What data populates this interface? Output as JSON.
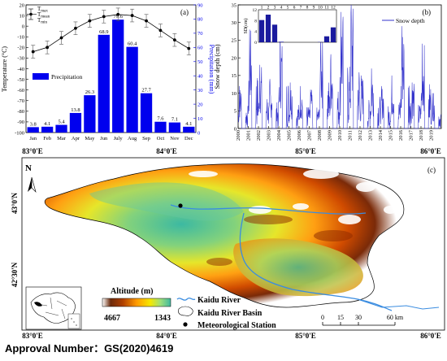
{
  "chart_data": [
    {
      "type": "bar",
      "panel_label": "(a)",
      "categories": [
        "Jan",
        "Feb",
        "Mar",
        "Apr",
        "May",
        "Jun",
        "July",
        "Aug",
        "Sep",
        "Oct",
        "Nov",
        "Dec"
      ],
      "precipitation": {
        "name": "Precipitation",
        "values": [
          3.8,
          4.1,
          5.4,
          13.8,
          26.3,
          68.9,
          79.6,
          60.4,
          27.7,
          7.6,
          7.1,
          4.1
        ],
        "color": "#0000ee"
      },
      "temperature": {
        "mean": [
          -24,
          -20,
          -11,
          -2,
          5,
          9,
          11,
          10,
          5,
          -4,
          -13,
          -21
        ],
        "max": [
          -18,
          -14,
          -5,
          4,
          11,
          15,
          17,
          16,
          11,
          2,
          -7,
          -15
        ],
        "min": [
          -30,
          -26,
          -17,
          -8,
          -1,
          3,
          5,
          4,
          -1,
          -10,
          -19,
          -27
        ]
      },
      "legend": {
        "tmax": "T",
        "tmax_sub": "max",
        "tmean": "T",
        "tmean_sub": "mean",
        "tmin": "T",
        "tmin_sub": "min"
      },
      "ylabel": "Temperature (°C)",
      "y2label": "Precipitation (mm)",
      "ylim": [
        -100,
        20
      ],
      "y2lim": [
        0,
        90
      ],
      "yticks": [
        20,
        10,
        0,
        -10,
        -20,
        -30,
        -40,
        -50,
        -60,
        -70,
        -80,
        -90,
        -100
      ],
      "y2ticks": [
        0,
        10,
        20,
        30,
        40,
        50,
        60,
        70,
        80,
        90
      ]
    },
    {
      "type": "line",
      "panel_label": "(b)",
      "series_name": "Snow depth",
      "ylabel": "Snow depth (cm)",
      "ylim": [
        0,
        35
      ],
      "yticks": [
        0,
        5,
        10,
        15,
        20,
        25,
        30,
        35
      ],
      "xticks": [
        "2000",
        "2001",
        "2002",
        "2003",
        "2004",
        "2005",
        "2006",
        "2007",
        "2008",
        "2009",
        "2010",
        "2011",
        "2012",
        "2013",
        "2014",
        "2015",
        "2016",
        "2017",
        "2018",
        "2019"
      ],
      "yearly_peaks": [
        12,
        28,
        18,
        14,
        26,
        13,
        12,
        11,
        26,
        21,
        33,
        35,
        15,
        17,
        12,
        15,
        29,
        13,
        24,
        10
      ],
      "color": "#3333cc",
      "inset": {
        "ylabel": "SD(cm)",
        "ylim": [
          0,
          12
        ],
        "yticks": [
          0,
          4,
          8,
          12
        ],
        "months": [
          "1",
          "2",
          "3",
          "4",
          "5",
          "6",
          "7",
          "8",
          "9",
          "10",
          "11",
          "12"
        ],
        "values": [
          8.2,
          10.2,
          6.5,
          0.2,
          0,
          0,
          0,
          0,
          0,
          0.1,
          2.2,
          5.5
        ]
      }
    },
    {
      "type": "map",
      "panel_label": "(c)",
      "top_ticks": [
        "83°0'E",
        "84°0'E",
        "85°0'E",
        "86°0'E"
      ],
      "bottom_ticks": [
        "83°0'E",
        "84°0'E",
        "85°0'E",
        "86°0'E"
      ],
      "left_ticks": [
        "43°0'N",
        "42°30'N"
      ],
      "north": "N",
      "legend": {
        "altitude_title": "Altitude (m)",
        "alt_high": "4667",
        "alt_low": "1343",
        "river": "Kaidu River",
        "basin": "Kaidu River Basin",
        "station": "Meteorological Station"
      },
      "scale": {
        "labels": [
          "0",
          "15",
          "30",
          "60 km"
        ]
      }
    }
  ],
  "approval": "Approval Number：GS(2020)4619"
}
